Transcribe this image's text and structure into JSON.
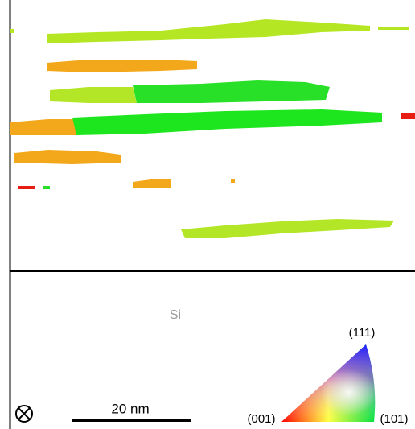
{
  "map": {
    "phase_label": "Si",
    "scale_bar": "20 nm"
  },
  "key": {
    "top": "(111)",
    "left": "(001)",
    "right": "(101)"
  }
}
